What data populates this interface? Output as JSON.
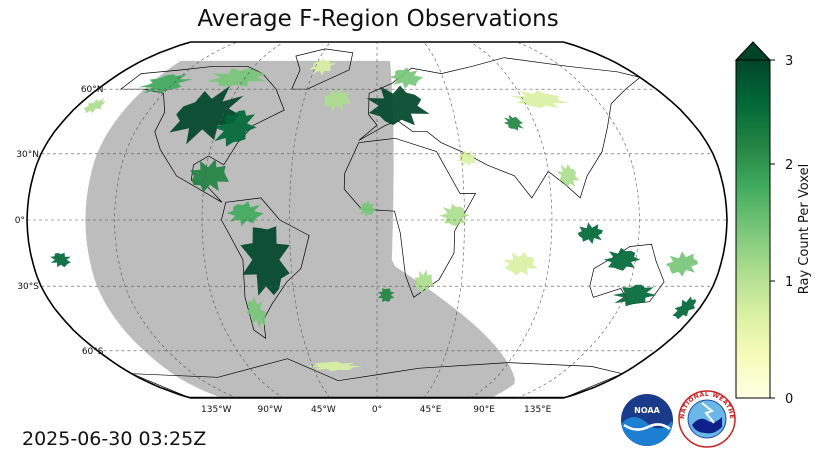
{
  "title": "Average F-Region Observations",
  "timestamp": "2025-06-30 03:25Z",
  "colors": {
    "night_shading": "#bdbdbd",
    "ocean": "#ffffff",
    "coastline": "#000000",
    "grid": "#555555",
    "colormap": [
      "#ffffe5",
      "#f7fcb9",
      "#d9f0a3",
      "#addd8e",
      "#78c679",
      "#41ab5d",
      "#238443",
      "#006837",
      "#004529"
    ]
  },
  "map": {
    "projection": "robinson",
    "lat_labels": [
      "60°N",
      "30°N",
      "0°",
      "30°S",
      "60°S"
    ],
    "lon_labels": [
      "135°W",
      "90°W",
      "45°W",
      "0°",
      "45°E",
      "90°E",
      "135°E"
    ]
  },
  "colorbar": {
    "label": "Ray Count Per Voxel",
    "ticks": [
      "0",
      "1",
      "2",
      "3"
    ],
    "range": [
      0,
      3
    ],
    "extend": "max"
  },
  "logos": {
    "noaa": {
      "text": "NOAA"
    },
    "nws": {
      "text": "NATIONAL WEATHER SERVICE"
    }
  },
  "observation_regions": [
    {
      "name": "north-america-main",
      "lon": -100,
      "lat": 48,
      "rx": 22,
      "ry": 14,
      "value": 3
    },
    {
      "name": "north-america-east",
      "lon": -80,
      "lat": 42,
      "rx": 12,
      "ry": 10,
      "value": 2.5
    },
    {
      "name": "alaska-yukon",
      "lon": -140,
      "lat": 63,
      "rx": 16,
      "ry": 6,
      "value": 1.8
    },
    {
      "name": "canada-arctic",
      "lon": -95,
      "lat": 66,
      "rx": 22,
      "ry": 6,
      "value": 1.5
    },
    {
      "name": "greenland",
      "lon": -40,
      "lat": 72,
      "rx": 10,
      "ry": 5,
      "value": 0.8
    },
    {
      "name": "mexico-caribbean",
      "lon": -88,
      "lat": 20,
      "rx": 12,
      "ry": 8,
      "value": 2.2
    },
    {
      "name": "south-america",
      "lon": -58,
      "lat": -18,
      "rx": 14,
      "ry": 20,
      "value": 3
    },
    {
      "name": "south-america-north",
      "lon": -68,
      "lat": 3,
      "rx": 10,
      "ry": 6,
      "value": 1.8
    },
    {
      "name": "patagonia",
      "lon": -68,
      "lat": -42,
      "rx": 6,
      "ry": 8,
      "value": 1.4
    },
    {
      "name": "europe",
      "lon": 12,
      "lat": 52,
      "rx": 20,
      "ry": 11,
      "value": 3
    },
    {
      "name": "scandinavia",
      "lon": 20,
      "lat": 66,
      "rx": 12,
      "ry": 6,
      "value": 1.6
    },
    {
      "name": "north-atlantic",
      "lon": -25,
      "lat": 55,
      "rx": 10,
      "ry": 6,
      "value": 1.2
    },
    {
      "name": "central-asia",
      "lon": 78,
      "lat": 44,
      "rx": 6,
      "ry": 4,
      "value": 2.4
    },
    {
      "name": "east-asia-north",
      "lon": 100,
      "lat": 55,
      "rx": 18,
      "ry": 5,
      "value": 0.7
    },
    {
      "name": "indonesia",
      "lon": 110,
      "lat": -6,
      "rx": 8,
      "ry": 5,
      "value": 2.8
    },
    {
      "name": "australia-north",
      "lon": 128,
      "lat": -18,
      "rx": 10,
      "ry": 6,
      "value": 2.6
    },
    {
      "name": "australia-south",
      "lon": 140,
      "lat": -34,
      "rx": 12,
      "ry": 6,
      "value": 2.8
    },
    {
      "name": "new-zealand",
      "lon": 172,
      "lat": -40,
      "rx": 6,
      "ry": 6,
      "value": 2.6
    },
    {
      "name": "pacific-sw",
      "lon": 160,
      "lat": -20,
      "rx": 10,
      "ry": 6,
      "value": 1.6
    },
    {
      "name": "hawaii-pacific",
      "lon": -165,
      "lat": -18,
      "rx": 6,
      "ry": 4,
      "value": 2.8
    },
    {
      "name": "south-africa",
      "lon": 25,
      "lat": -28,
      "rx": 6,
      "ry": 6,
      "value": 1.2
    },
    {
      "name": "south-atlantic",
      "lon": 5,
      "lat": -34,
      "rx": 5,
      "ry": 4,
      "value": 2.2
    },
    {
      "name": "east-africa",
      "lon": 40,
      "lat": 2,
      "rx": 8,
      "ry": 6,
      "value": 1.1
    },
    {
      "name": "middle-east",
      "lon": 48,
      "lat": 28,
      "rx": 6,
      "ry": 4,
      "value": 0.9
    },
    {
      "name": "southeast-asia",
      "lon": 100,
      "lat": 20,
      "rx": 6,
      "ry": 6,
      "value": 1.2
    },
    {
      "name": "indian-ocean",
      "lon": 75,
      "lat": -20,
      "rx": 10,
      "ry": 6,
      "value": 0.9
    },
    {
      "name": "antarctic-south",
      "lon": -30,
      "lat": -68,
      "rx": 20,
      "ry": 3,
      "value": 0.8
    },
    {
      "name": "west-africa",
      "lon": -5,
      "lat": 5,
      "rx": 5,
      "ry": 4,
      "value": 1.4
    },
    {
      "name": "north-pacific",
      "lon": -170,
      "lat": 52,
      "rx": 6,
      "ry": 4,
      "value": 1
    }
  ]
}
